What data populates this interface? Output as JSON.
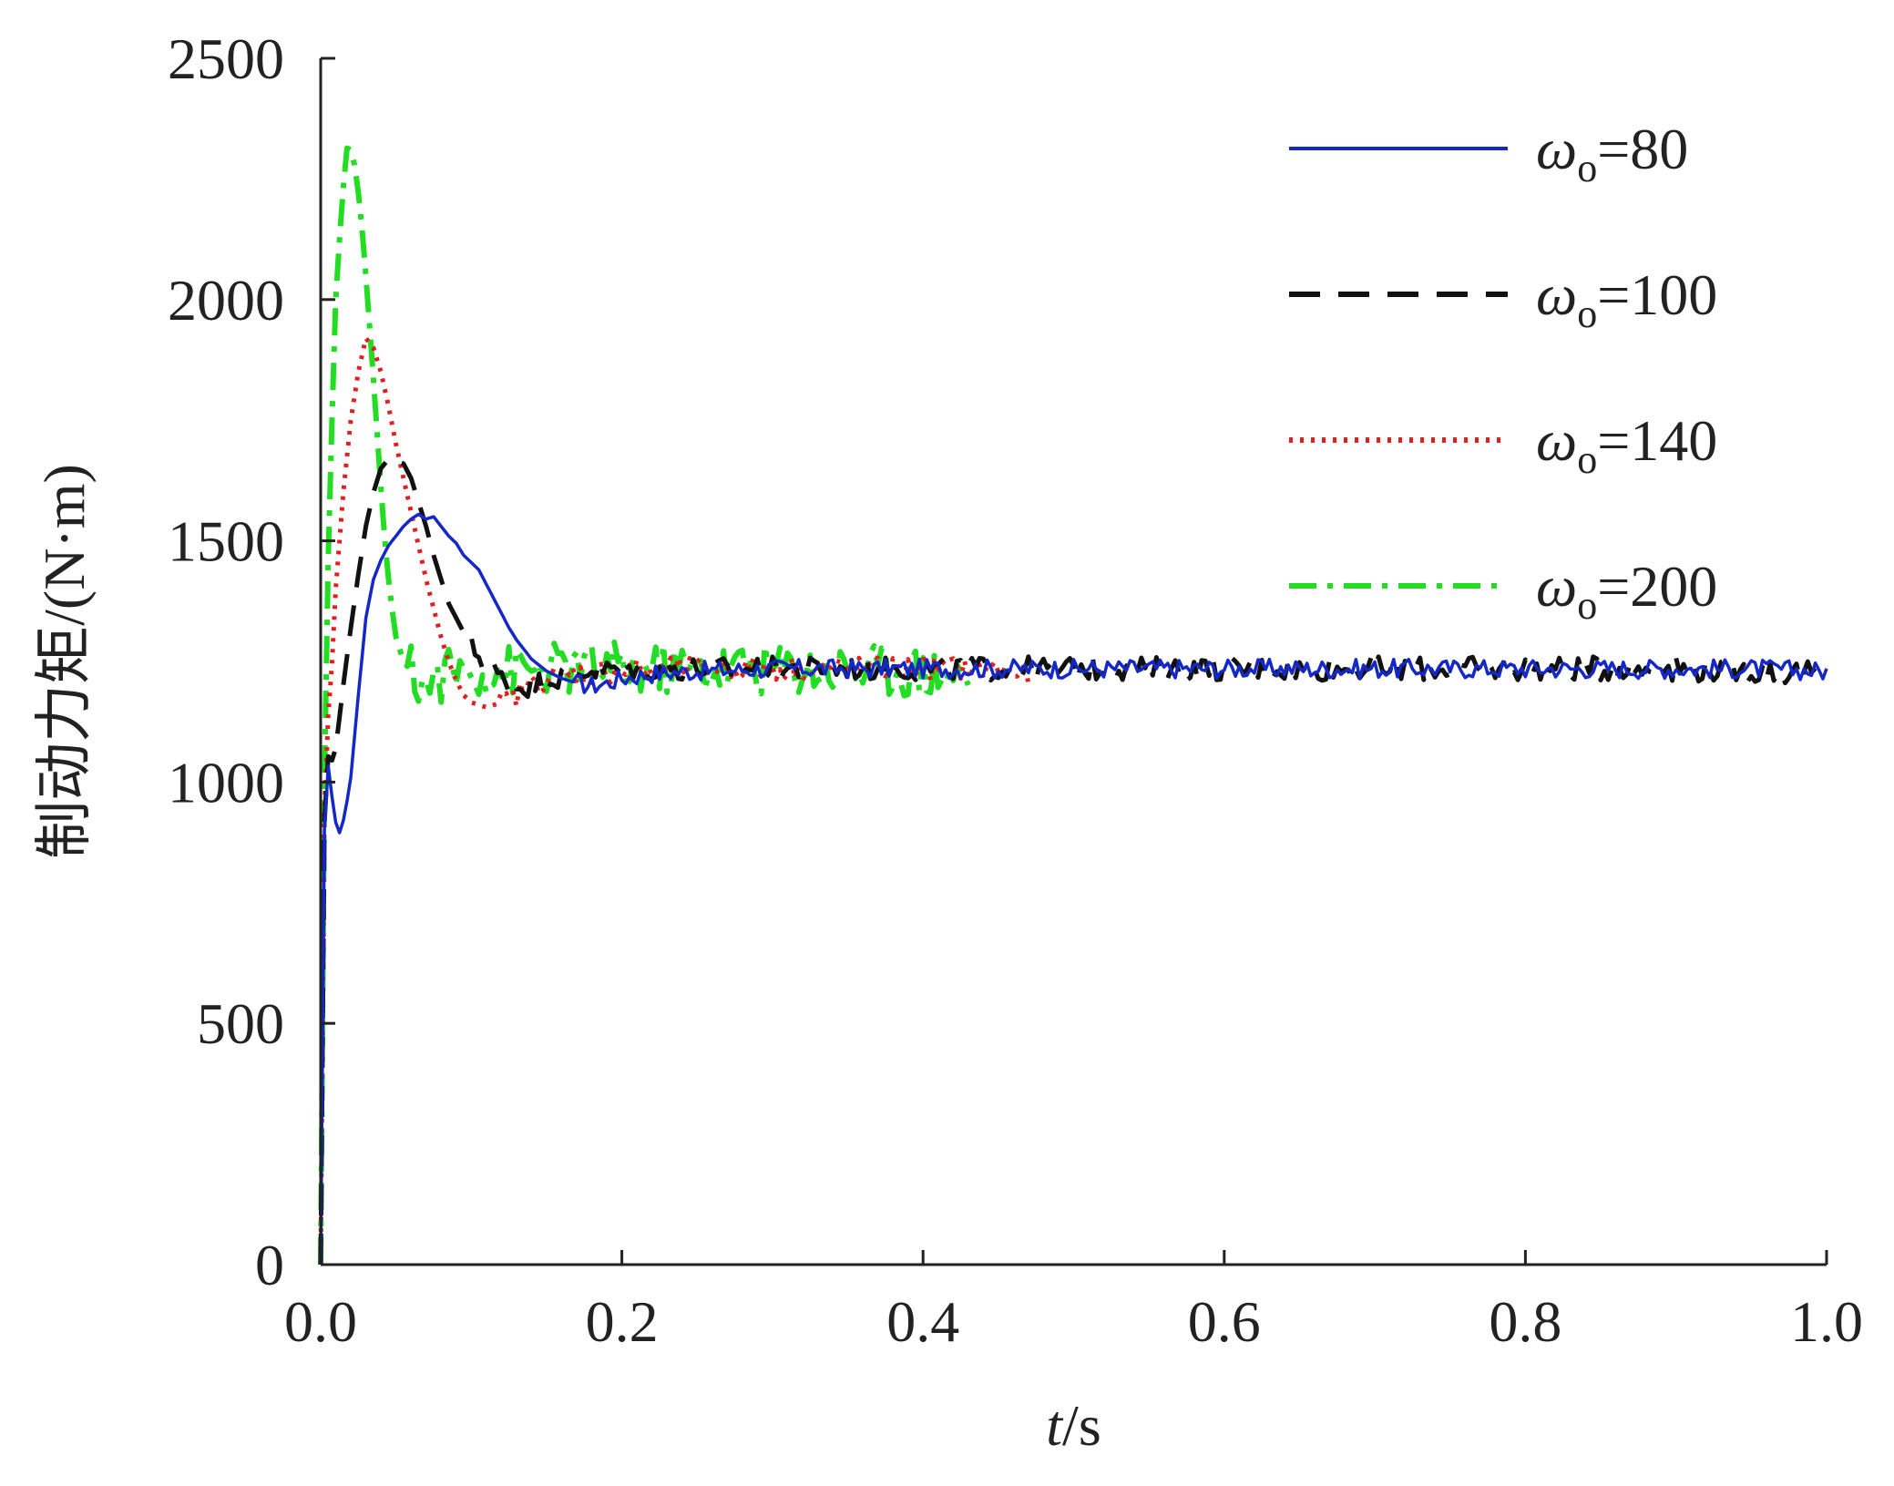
{
  "chart_data": {
    "type": "line",
    "xlabel_italic": "t",
    "xlabel_unit": "/s",
    "ylabel": "制动力矩/(N·m)",
    "xlim": [
      0,
      1.0
    ],
    "ylim": [
      0,
      2500
    ],
    "x_ticks": [
      0.0,
      0.2,
      0.4,
      0.6,
      0.8,
      1.0
    ],
    "x_tick_labels": [
      "0.0",
      "0.2",
      "0.4",
      "0.6",
      "0.8",
      "1.0"
    ],
    "y_ticks": [
      0,
      500,
      1000,
      1500,
      2000,
      2500
    ],
    "y_tick_labels": [
      "0",
      "500",
      "1000",
      "1500",
      "2000",
      "2500"
    ],
    "grid": false,
    "legend_position": "top-right",
    "series": [
      {
        "legend_symbol": "ω",
        "legend_subscript": "o",
        "legend_value": "=80",
        "color": "#1428c8",
        "dash": "solid",
        "x": [
          0,
          0.003,
          0.006,
          0.009,
          0.012,
          0.016,
          0.02,
          0.025,
          0.03,
          0.035,
          0.04,
          0.045,
          0.05,
          0.055,
          0.06,
          0.065,
          0.07,
          0.075,
          0.08,
          0.085,
          0.09,
          0.095,
          0.1,
          0.105,
          0.11,
          0.115,
          0.12,
          0.125,
          0.13,
          0.135,
          0.14,
          0.15,
          0.16,
          0.17,
          0.18,
          0.19,
          0.2,
          0.22,
          0.25,
          0.3,
          0.35,
          0.4,
          0.45,
          0.5,
          0.55,
          0.6,
          0.65,
          0.7,
          0.75,
          0.8,
          0.85,
          0.9,
          0.95,
          1.0
        ],
        "y": [
          0,
          1080,
          1010,
          930,
          890,
          930,
          1010,
          1180,
          1340,
          1420,
          1460,
          1490,
          1510,
          1530,
          1545,
          1555,
          1545,
          1550,
          1530,
          1510,
          1495,
          1470,
          1455,
          1440,
          1410,
          1380,
          1350,
          1320,
          1295,
          1275,
          1255,
          1230,
          1215,
          1205,
          1200,
          1205,
          1215,
          1225,
          1230,
          1235,
          1235,
          1235,
          1235,
          1235,
          1235,
          1235,
          1235,
          1235,
          1235,
          1235,
          1235,
          1235,
          1235,
          1230
        ],
        "noise_amplitude": 20,
        "noise_from_x": 0.17
      },
      {
        "legend_symbol": "ω",
        "legend_subscript": "o",
        "legend_value": "=100",
        "color": "#111111",
        "dash": "dashed",
        "x": [
          0,
          0.003,
          0.006,
          0.01,
          0.015,
          0.02,
          0.025,
          0.03,
          0.035,
          0.04,
          0.045,
          0.05,
          0.055,
          0.06,
          0.065,
          0.07,
          0.075,
          0.08,
          0.085,
          0.09,
          0.095,
          0.1,
          0.11,
          0.12,
          0.13,
          0.14,
          0.15,
          0.16,
          0.17,
          0.18,
          0.2,
          0.25,
          0.3,
          0.35,
          0.4,
          0.45,
          0.5,
          0.6,
          0.7,
          0.8,
          0.9,
          1.0
        ],
        "y": [
          0,
          1100,
          1030,
          1070,
          1200,
          1320,
          1430,
          1530,
          1600,
          1650,
          1670,
          1665,
          1660,
          1630,
          1580,
          1530,
          1470,
          1420,
          1370,
          1340,
          1310,
          1280,
          1245,
          1215,
          1200,
          1200,
          1210,
          1220,
          1228,
          1232,
          1235,
          1235,
          1235,
          1235,
          1235,
          1235,
          1235,
          1235,
          1235,
          1235,
          1235,
          1225
        ],
        "noise_amplitude": 25,
        "noise_from_x": 0.1
      },
      {
        "legend_symbol": "ω",
        "legend_subscript": "o",
        "legend_value": "=140",
        "color": "#e02020",
        "dash": "dotted",
        "x": [
          0,
          0.003,
          0.006,
          0.01,
          0.015,
          0.02,
          0.025,
          0.03,
          0.035,
          0.04,
          0.045,
          0.05,
          0.055,
          0.06,
          0.065,
          0.07,
          0.075,
          0.08,
          0.085,
          0.09,
          0.095,
          0.1,
          0.11,
          0.12,
          0.13,
          0.14,
          0.15,
          0.17,
          0.2,
          0.25,
          0.3,
          0.35,
          0.4,
          0.45,
          0.47
        ],
        "y": [
          0,
          1120,
          1150,
          1400,
          1600,
          1750,
          1850,
          1920,
          1900,
          1850,
          1780,
          1700,
          1630,
          1560,
          1490,
          1420,
          1360,
          1300,
          1250,
          1210,
          1180,
          1165,
          1155,
          1165,
          1180,
          1200,
          1215,
          1225,
          1230,
          1235,
          1235,
          1235,
          1235,
          1235,
          1220
        ],
        "noise_amplitude": 25,
        "noise_from_x": 0.12
      },
      {
        "legend_symbol": "ω",
        "legend_subscript": "o",
        "legend_value": "=200",
        "color": "#22dd22",
        "dash": "dashdot",
        "x": [
          0,
          0.003,
          0.006,
          0.01,
          0.014,
          0.018,
          0.022,
          0.026,
          0.03,
          0.034,
          0.038,
          0.042,
          0.046,
          0.05,
          0.055,
          0.06,
          0.065,
          0.07,
          0.08,
          0.09,
          0.1,
          0.12,
          0.15,
          0.2,
          0.25,
          0.3,
          0.35,
          0.4,
          0.43
        ],
        "y": [
          0,
          1200,
          1600,
          2000,
          2200,
          2330,
          2290,
          2200,
          2050,
          1880,
          1700,
          1520,
          1390,
          1300,
          1250,
          1230,
          1210,
          1200,
          1220,
          1230,
          1230,
          1230,
          1235,
          1235,
          1235,
          1235,
          1235,
          1230,
          1220
        ],
        "noise_amplitude": 55,
        "noise_from_x": 0.06
      }
    ]
  }
}
